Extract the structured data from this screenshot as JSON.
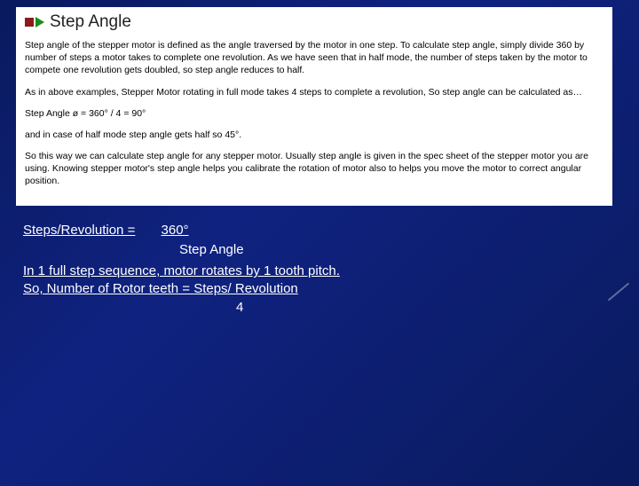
{
  "panel": {
    "heading": "Step Angle",
    "p1": "Step angle of the stepper motor is defined as the angle traversed by the motor in one step. To calculate step angle, simply divide 360 by number of steps a motor takes to complete one revolution. As we have seen that in half mode, the number of steps taken by the motor to compete one revolution gets doubled, so step angle reduces to half.",
    "p2": "As in above examples, Stepper Motor rotating in full mode takes 4 steps to complete a revolution, So step angle can be calculated as…",
    "p3": "Step Angle ø = 360° / 4 = 90°",
    "p4": "and in case of half mode step angle gets half so 45°.",
    "p5": "So this way we can calculate step angle for any stepper motor. Usually step angle is given in the spec sheet of the stepper motor you are using. Knowing stepper motor's step angle helps you calibrate the rotation of motor also to helps you move the motor to correct angular position."
  },
  "blue": {
    "line1_a": "Steps/Revolution =",
    "line1_b": "       360°       ",
    "line2": "Step Angle",
    "line3": "In 1 full step sequence, motor rotates by 1 tooth pitch.",
    "line4_a": "So, Number of Rotor teeth = ",
    "line4_b": "Steps/  Revolution",
    "line5": "4"
  },
  "colors": {
    "bg_dark": "#0a1a5e",
    "bg_mid": "#0f2280",
    "bullet": "#8b1a1a",
    "triangle": "#1a8b1a",
    "panel_bg": "#ffffff",
    "text_light": "#ffffff",
    "text_dark": "#000000"
  }
}
